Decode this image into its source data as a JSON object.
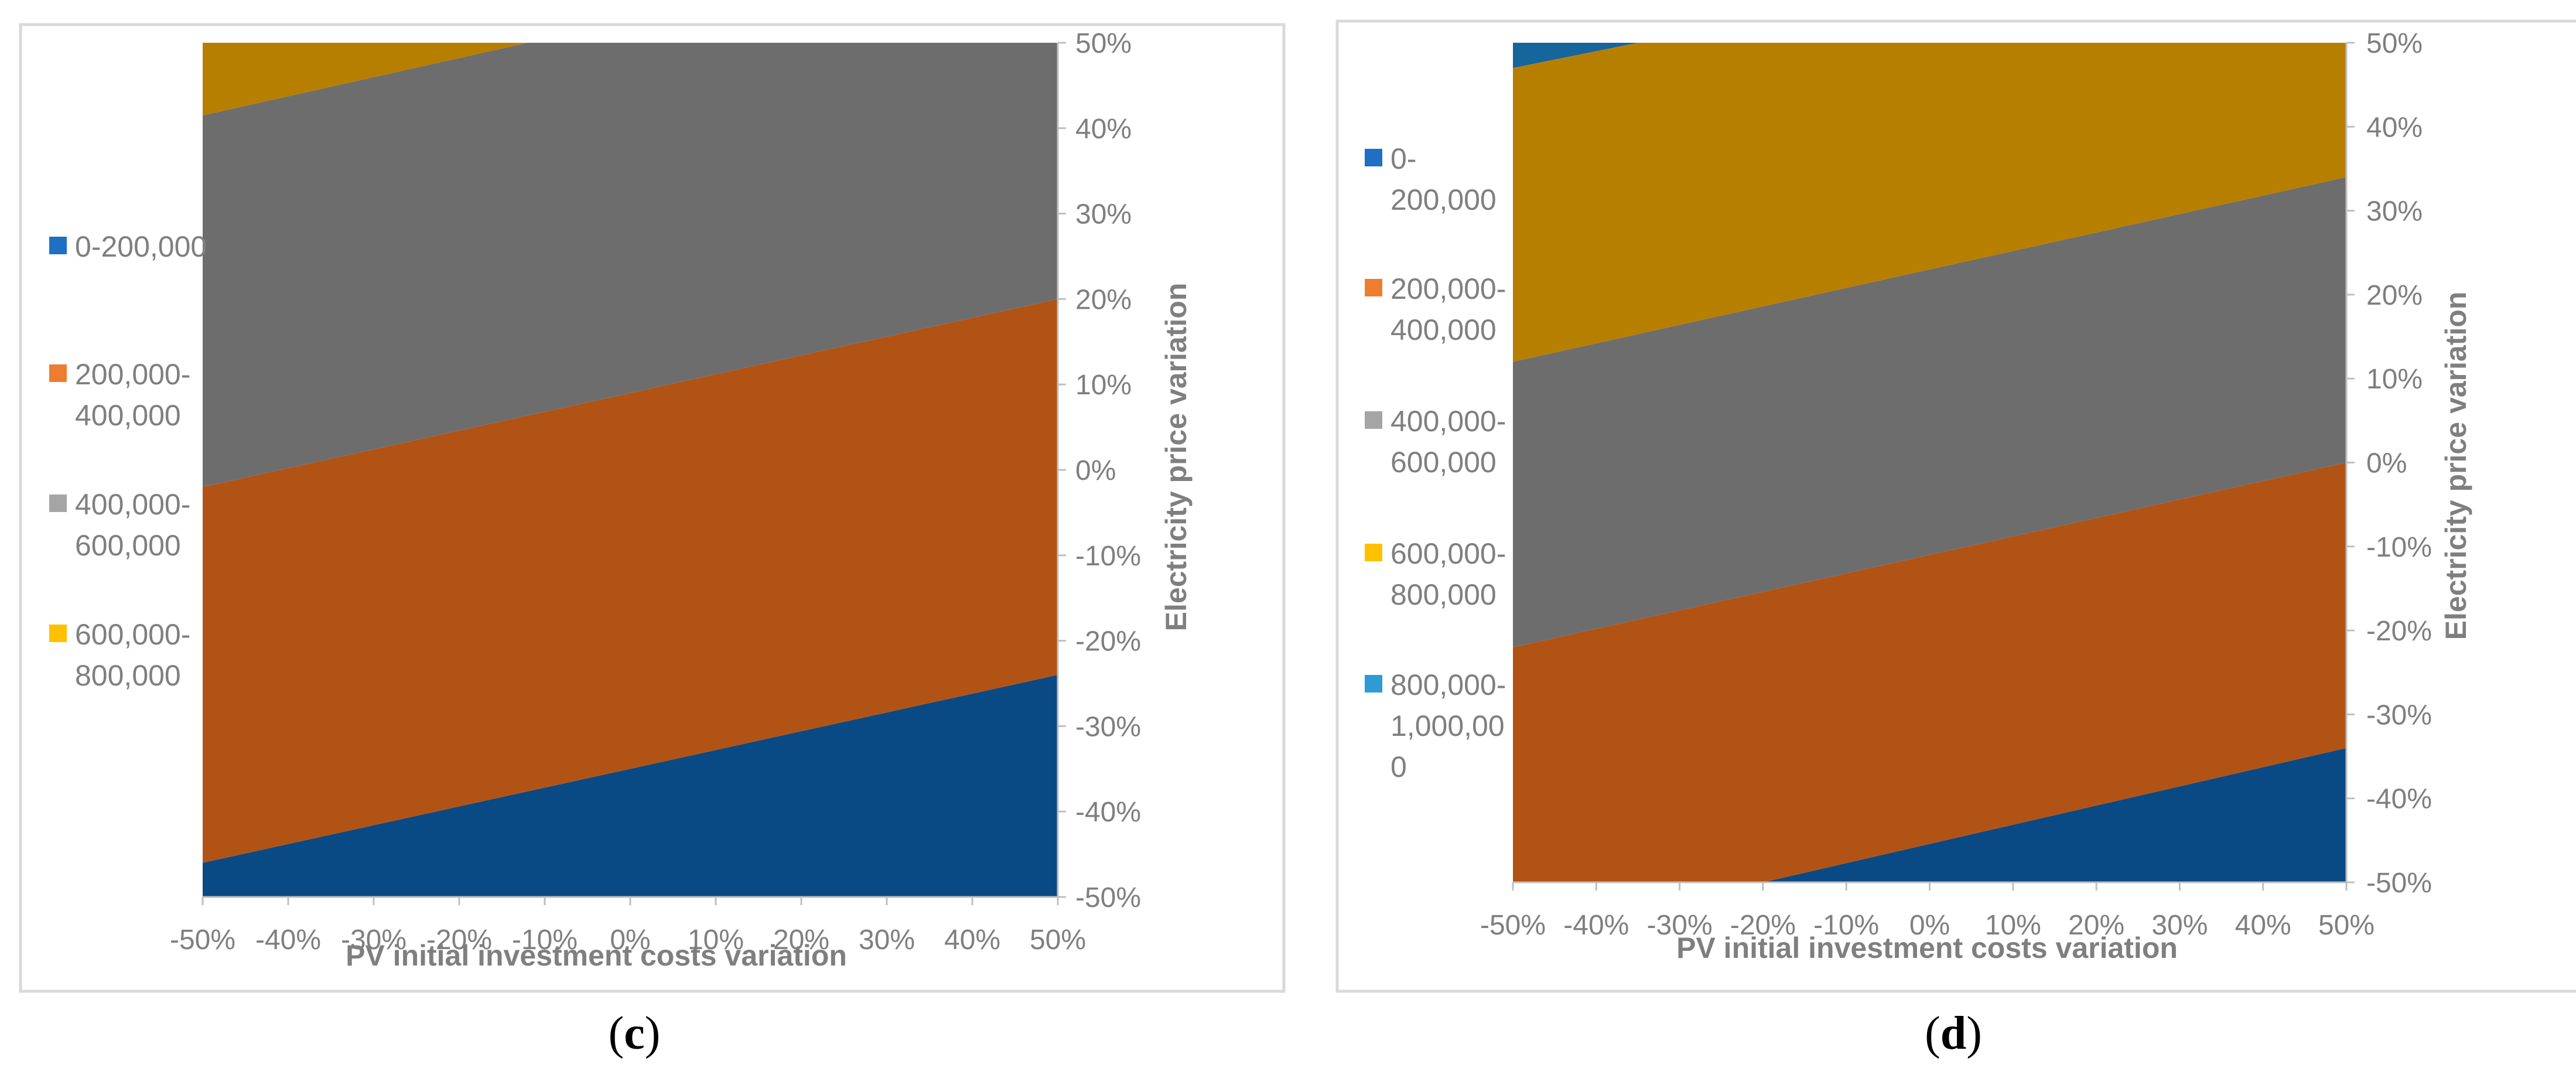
{
  "figure": {
    "colors": {
      "frame": "#d9d9d9",
      "axis": "#bfbfbf",
      "text": "#7f7f7f",
      "legend_blue": "#1f6fc5",
      "legend_orange": "#ed7d31",
      "legend_gray": "#a5a5a5",
      "legend_yellow": "#ffc000",
      "legend_lightblue": "#2e9bd6",
      "band_blue": "#0a4a84",
      "band_orange": "#b25316",
      "band_gray": "#6d6d6d",
      "band_gold": "#b77f00",
      "band_teal": "#16659c"
    }
  },
  "chart_data": [
    {
      "type": "area",
      "panel": "c",
      "caption_letter": "c",
      "caption_open": "(",
      "caption_close": ")",
      "xlabel": "PV initial investment costs variation",
      "ylabel": "Electricity price variation",
      "x_ticks": [
        "-50%",
        "-40%",
        "-30%",
        "-20%",
        "-10%",
        "0%",
        "10%",
        "20%",
        "30%",
        "40%",
        "50%"
      ],
      "y_ticks": [
        "50%",
        "40%",
        "30%",
        "20%",
        "10%",
        "0%",
        "-10%",
        "-20%",
        "-30%",
        "-40%",
        "-50%"
      ],
      "xlim": [
        -50,
        50
      ],
      "ylim": [
        -50,
        50
      ],
      "legend": [
        {
          "lines": [
            "0-200,000"
          ],
          "color_key": "legend_blue"
        },
        {
          "lines": [
            "200,000-",
            "400,000"
          ],
          "color_key": "legend_orange"
        },
        {
          "lines": [
            "400,000-",
            "600,000"
          ],
          "color_key": "legend_gray"
        },
        {
          "lines": [
            "600,000-",
            "800,000"
          ],
          "color_key": "legend_yellow"
        }
      ],
      "bands": [
        {
          "name": "0-200,000",
          "color_key": "band_blue",
          "bottom": [
            [
              -50,
              -50
            ],
            [
              50,
              -50
            ]
          ],
          "top": [
            [
              -50,
              -46
            ],
            [
              50,
              -24
            ]
          ]
        },
        {
          "name": "200,000-400,000",
          "color_key": "band_orange",
          "bottom": [
            [
              -50,
              -46
            ],
            [
              50,
              -24
            ]
          ],
          "top": [
            [
              -50,
              -2
            ],
            [
              50,
              20
            ]
          ]
        },
        {
          "name": "400,000-600,000",
          "color_key": "band_gray",
          "bottom": [
            [
              -50,
              -2
            ],
            [
              50,
              20
            ]
          ],
          "top": [
            [
              -50,
              41.5
            ],
            [
              -12,
              50
            ],
            [
              50,
              50
            ]
          ]
        },
        {
          "name": "600,000-800,000",
          "color_key": "band_gold",
          "bottom": [
            [
              -50,
              41.5
            ],
            [
              -12,
              50
            ]
          ],
          "top": [
            [
              -50,
              50
            ],
            [
              -12,
              50
            ]
          ]
        }
      ]
    },
    {
      "type": "area",
      "panel": "d",
      "caption_letter": "d",
      "caption_open": "(",
      "caption_close": ")",
      "xlabel": "PV initial investment costs variation",
      "ylabel": "Electricity price variation",
      "x_ticks": [
        "-50%",
        "-40%",
        "-30%",
        "-20%",
        "-10%",
        "0%",
        "10%",
        "20%",
        "30%",
        "40%",
        "50%"
      ],
      "y_ticks": [
        "50%",
        "40%",
        "30%",
        "20%",
        "10%",
        "0%",
        "-10%",
        "-20%",
        "-30%",
        "-40%",
        "-50%"
      ],
      "xlim": [
        -50,
        50
      ],
      "ylim": [
        -50,
        50
      ],
      "legend": [
        {
          "lines": [
            "0-",
            "200,000"
          ],
          "color_key": "legend_blue"
        },
        {
          "lines": [
            "200,000-",
            "400,000"
          ],
          "color_key": "legend_orange"
        },
        {
          "lines": [
            "400,000-",
            "600,000"
          ],
          "color_key": "legend_gray"
        },
        {
          "lines": [
            "600,000-",
            "800,000"
          ],
          "color_key": "legend_yellow"
        },
        {
          "lines": [
            "800,000-",
            "1,000,00",
            "0"
          ],
          "color_key": "legend_lightblue"
        }
      ],
      "bands": [
        {
          "name": "0-200,000",
          "color_key": "band_blue",
          "bottom": [
            [
              -20,
              -50
            ],
            [
              50,
              -50
            ]
          ],
          "top": [
            [
              -20,
              -50
            ],
            [
              50,
              -34
            ]
          ]
        },
        {
          "name": "200,000-400,000",
          "color_key": "band_orange",
          "bottom": [
            [
              -50,
              -50
            ],
            [
              -20,
              -50
            ],
            [
              50,
              -34
            ]
          ],
          "top": [
            [
              -50,
              -22
            ],
            [
              50,
              0
            ]
          ]
        },
        {
          "name": "400,000-600,000",
          "color_key": "band_gray",
          "bottom": [
            [
              -50,
              -22
            ],
            [
              50,
              0
            ]
          ],
          "top": [
            [
              -50,
              12
            ],
            [
              50,
              34
            ]
          ]
        },
        {
          "name": "600,000-800,000",
          "color_key": "band_gold",
          "bottom": [
            [
              -50,
              12
            ],
            [
              50,
              34
            ]
          ],
          "top": [
            [
              -50,
              47
            ],
            [
              -35,
              50
            ],
            [
              50,
              50
            ]
          ]
        },
        {
          "name": "800,000-1,000,000",
          "color_key": "band_teal",
          "bottom": [
            [
              -50,
              47
            ],
            [
              -35,
              50
            ]
          ],
          "top": [
            [
              -50,
              50
            ],
            [
              -35,
              50
            ]
          ]
        }
      ]
    }
  ]
}
